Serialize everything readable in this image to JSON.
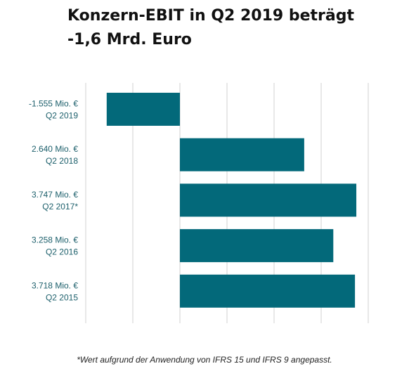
{
  "title_line1": "Konzern-EBIT in Q2 2019 beträgt",
  "title_line2": "-1,6 Mrd. Euro",
  "footnote": "*Wert aufgrund der Anwendung von IFRS 15 und IFRS 9 angepasst.",
  "colors": {
    "bar": "#03697a",
    "label": "#1c5f6b",
    "grid": "#d0d0d0"
  },
  "chart_data": {
    "type": "bar",
    "orientation": "horizontal",
    "title": "Konzern-EBIT in Q2 2019 beträgt -1,6 Mrd. Euro",
    "categories": [
      "Q2 2019",
      "Q2 2018",
      "Q2 2017*",
      "Q2 2016",
      "Q2 2015"
    ],
    "value_labels": [
      "-1.555 Mio. €",
      "2.640 Mio. €",
      "3.747 Mio. €",
      "3.258 Mio. €",
      "3.718 Mio. €"
    ],
    "values": [
      -1555,
      2640,
      3747,
      3258,
      3718
    ],
    "unit": "Mio. €",
    "xlim": [
      -2000,
      4000
    ],
    "grid": true,
    "legend": "none"
  }
}
